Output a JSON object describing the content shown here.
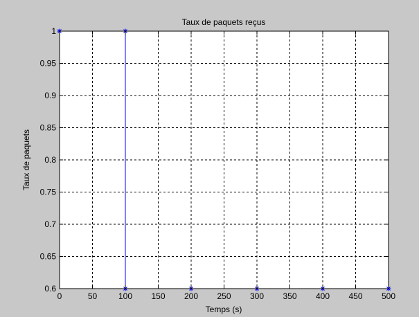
{
  "chart_data": {
    "type": "line",
    "title": "Taux de paquets reçus",
    "xlabel": "Temps (s)",
    "ylabel": "Taux de paquets",
    "xlim": [
      0,
      500
    ],
    "ylim": [
      0.6,
      1
    ],
    "x_ticks": [
      "0",
      "50",
      "100",
      "150",
      "200",
      "250",
      "300",
      "350",
      "400",
      "450",
      "500"
    ],
    "y_ticks": [
      "0.6",
      "0.65",
      "0.7",
      "0.75",
      "0.8",
      "0.85",
      "0.9",
      "0.95",
      "1"
    ],
    "grid": true,
    "series": [
      {
        "color": "#0000ff",
        "marker": "asterisk",
        "x": [
          0,
          100,
          100,
          200,
          300,
          400,
          500
        ],
        "y": [
          1,
          1,
          0.6,
          0.6,
          0.6,
          0.6,
          0.6
        ]
      }
    ]
  },
  "colors": {
    "figure_background": "#c8c8c8",
    "axes_background": "#ffffff",
    "series_line": "#0000ff"
  }
}
